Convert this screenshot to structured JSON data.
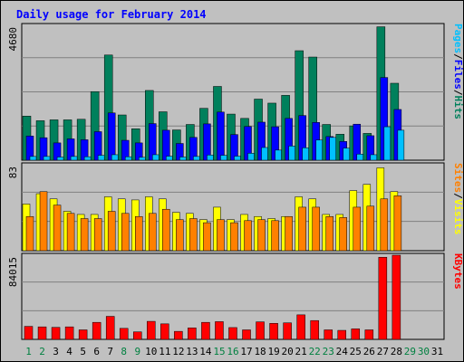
{
  "colors": {
    "background": "#c0c0c0",
    "panel_border": "#000000",
    "title": "#0000ff",
    "hits_fill": "#00805c",
    "files_fill": "#0000ff",
    "pages_fill": "#00c0ff",
    "visits_fill": "#ffff00",
    "sites_fill": "#ff8000",
    "kbytes_fill": "#ff0000",
    "weekday_label": "#000000",
    "weekend_label": "#008040",
    "grid": "#808080"
  },
  "chart_data": {
    "type": "bar",
    "title": "Daily usage for February 2014",
    "categories": [
      "1",
      "2",
      "3",
      "4",
      "5",
      "6",
      "7",
      "8",
      "9",
      "10",
      "11",
      "12",
      "13",
      "14",
      "15",
      "16",
      "17",
      "18",
      "19",
      "20",
      "21",
      "22",
      "23",
      "24",
      "25",
      "26",
      "27",
      "28",
      "29",
      "30",
      "31"
    ],
    "weekend_days": [
      "1",
      "2",
      "8",
      "9",
      "15",
      "16",
      "22",
      "23",
      "29",
      "30"
    ],
    "panels": [
      {
        "name": "usage",
        "ymax": 4680,
        "ymax_label": "4680",
        "axis_label_parts": [
          "Pages",
          "/",
          "Files",
          "/",
          "Hits"
        ],
        "axis_label_colors": [
          "#00c0ff",
          "#000000",
          "#0000ff",
          "#000000",
          "#00805c"
        ],
        "series": [
          {
            "name": "Hits",
            "values": [
              1530,
              1370,
              1400,
              1400,
              1420,
              2380,
              3650,
              1570,
              1090,
              2420,
              1680,
              1050,
              1240,
              1800,
              2560,
              1600,
              1450,
              2120,
              1980,
              2250,
              3800,
              3580,
              1240,
              900,
              1190,
              930,
              4630,
              2670,
              null,
              null,
              null
            ]
          },
          {
            "name": "Files",
            "values": [
              840,
              780,
              600,
              740,
              710,
              990,
              1640,
              690,
              600,
              1270,
              1040,
              580,
              790,
              1260,
              1670,
              890,
              1170,
              1320,
              1160,
              1450,
              1550,
              1310,
              820,
              650,
              1250,
              850,
              2870,
              1760,
              null,
              null,
              null
            ]
          },
          {
            "name": "Pages",
            "values": [
              130,
              130,
              110,
              130,
              120,
              170,
              190,
              120,
              100,
              190,
              140,
              110,
              130,
              180,
              170,
              140,
              240,
              440,
              350,
              490,
              430,
              700,
              790,
              420,
              210,
              190,
              1160,
              1040,
              null,
              null,
              null
            ]
          }
        ]
      },
      {
        "name": "visits",
        "ymax": 83,
        "ymax_label": "83",
        "axis_label_parts": [
          "Sites",
          "/",
          "Visits"
        ],
        "axis_label_colors": [
          "#ff8000",
          "#000000",
          "#ffff00"
        ],
        "series": [
          {
            "name": "Visits",
            "values": [
              45,
              55,
              50,
              38,
              35,
              35,
              52,
              50,
              49,
              52,
              50,
              37,
              36,
              30,
              42,
              30,
              35,
              33,
              31,
              33,
              52,
              50,
              35,
              35,
              58,
              64,
              80,
              57,
              null,
              null,
              null
            ]
          },
          {
            "name": "Sites",
            "values": [
              33,
              57,
              44,
              36,
              31,
              31,
              38,
              36,
              33,
              36,
              40,
              30,
              31,
              27,
              30,
              27,
              29,
              30,
              29,
              33,
              42,
              42,
              33,
              32,
              42,
              43,
              50,
              53,
              null,
              null,
              null
            ]
          }
        ]
      },
      {
        "name": "kbytes",
        "ymax": 84015,
        "ymax_label": "84015",
        "axis_label_parts": [
          "KBytes"
        ],
        "axis_label_colors": [
          "#ff0000"
        ],
        "series": [
          {
            "name": "KBytes",
            "values": [
              13000,
              12500,
              12000,
              12500,
              9500,
              17000,
              23000,
              11000,
              7500,
              18000,
              15500,
              8000,
              11500,
              17000,
              17700,
              11800,
              9500,
              17500,
              16000,
              16500,
              24500,
              18800,
              9500,
              9000,
              10500,
              9500,
              82000,
              84015,
              null,
              null,
              null
            ]
          }
        ]
      }
    ]
  }
}
